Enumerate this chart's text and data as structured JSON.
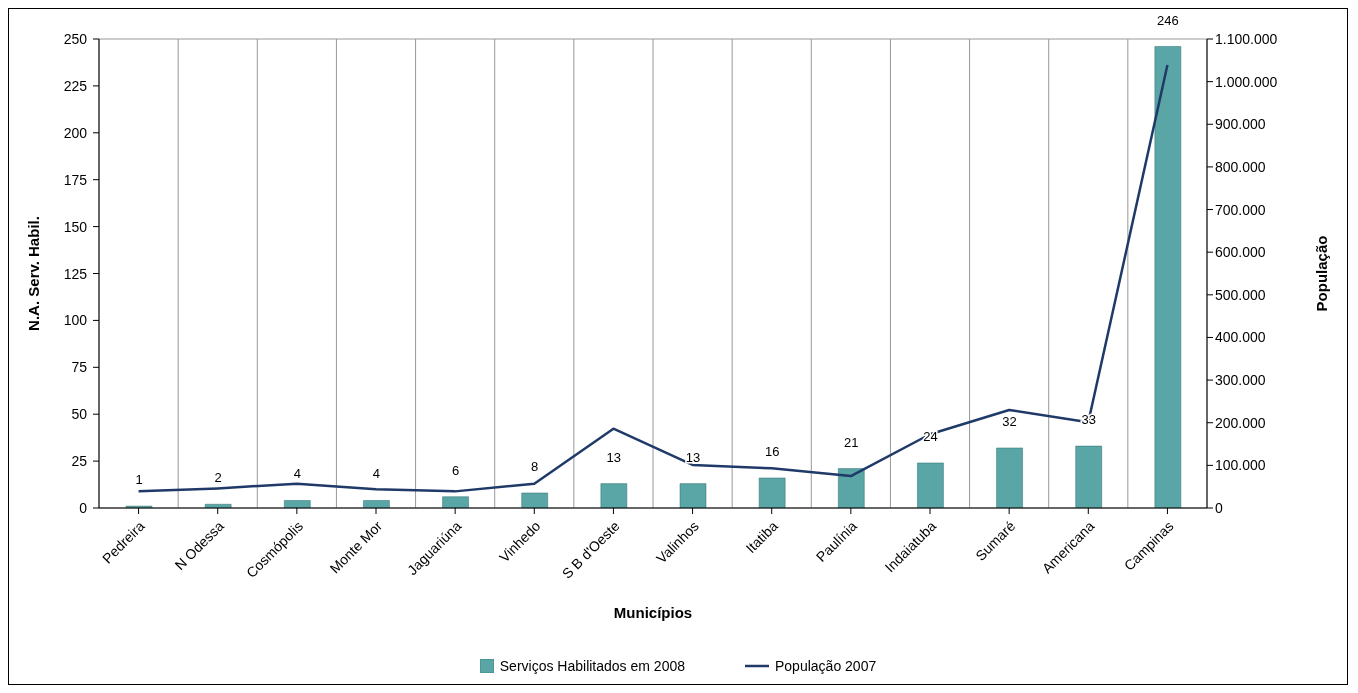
{
  "chart_data": {
    "type": "bar",
    "xlabel": "Municípios",
    "ylabel": "N.A. Serv. Habil.",
    "y2label": "População",
    "categories": [
      "Pedreira",
      "N Odessa",
      "Cosmópolis",
      "Monte Mor",
      "Jaguariúna",
      "Vinhedo",
      "S B d'Oeste",
      "Valinhos",
      "Itatiba",
      "Paulínia",
      "Indaiatuba",
      "Sumaré",
      "Americana",
      "Campinas"
    ],
    "series": [
      {
        "name": "Serviços Habilitados em 2008",
        "color": "#5aa5a5",
        "values": [
          1,
          2,
          4,
          4,
          6,
          8,
          13,
          13,
          16,
          21,
          24,
          32,
          33,
          246
        ],
        "value_labels": [
          "1",
          "2",
          "4",
          "4",
          "6",
          "8",
          "13",
          "13",
          "16",
          "21",
          "24",
          "32",
          "33",
          "246"
        ]
      },
      {
        "name": "População 2007",
        "type": "line",
        "axis": "y2",
        "color": "#1f3a68",
        "values": [
          39000,
          46000,
          57000,
          44000,
          39000,
          57000,
          186000,
          101000,
          93000,
          75000,
          173000,
          230000,
          201000,
          1039000
        ]
      }
    ],
    "ylim": [
      0,
      250
    ],
    "yticks": [
      0,
      25,
      50,
      75,
      100,
      125,
      150,
      175,
      200,
      225,
      250
    ],
    "y2lim": [
      0,
      1100000
    ],
    "y2ticks": [
      {
        "value": 0,
        "label": "0"
      },
      {
        "value": 100000,
        "label": "100.000"
      },
      {
        "value": 200000,
        "label": "200.000"
      },
      {
        "value": 300000,
        "label": "300.000"
      },
      {
        "value": 400000,
        "label": "400.000"
      },
      {
        "value": 500000,
        "label": "500.000"
      },
      {
        "value": 600000,
        "label": "600.000"
      },
      {
        "value": 700000,
        "label": "700.000"
      },
      {
        "value": 800000,
        "label": "800.000"
      },
      {
        "value": 900000,
        "label": "900.000"
      },
      {
        "value": 1000000,
        "label": "1.000.000"
      },
      {
        "value": 1100000,
        "label": "1.100.000"
      }
    ],
    "grid": true,
    "legend": "bottom",
    "marker": "none",
    "line_style": "solid"
  }
}
